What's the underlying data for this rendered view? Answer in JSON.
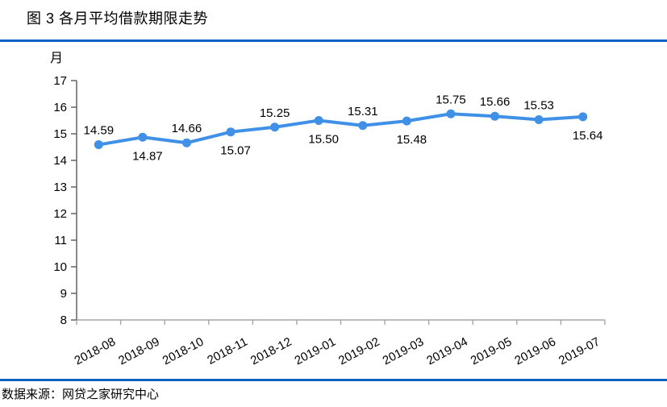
{
  "header": {
    "title": "图 3 各月平均借款期限走势"
  },
  "footer": {
    "source": "数据来源：网贷之家研究中心"
  },
  "colors": {
    "series_line": "#4090E8",
    "divider_blue": "#0E60C4",
    "y_axis": "#595959",
    "x_axis": "#A6A6A6",
    "label_text": "#000000"
  },
  "chart_data": {
    "type": "line",
    "title": "图 3 各月平均借款期限走势",
    "xlabel": "",
    "ylabel": "月",
    "ylim": [
      8,
      17
    ],
    "y_tick_step": 1,
    "grid": false,
    "legend": "none",
    "x": [
      "2018-08",
      "2018-09",
      "2018-10",
      "2018-11",
      "2018-12",
      "2019-01",
      "2019-02",
      "2019-03",
      "2019-04",
      "2019-05",
      "2019-06",
      "2019-07"
    ],
    "values": [
      14.59,
      14.87,
      14.66,
      15.07,
      15.25,
      15.5,
      15.31,
      15.48,
      15.75,
      15.66,
      15.53,
      15.64
    ],
    "data_label_side": [
      "above",
      "below",
      "above",
      "below",
      "above",
      "below",
      "above",
      "below",
      "above",
      "above",
      "above",
      "below"
    ],
    "data_label_format": "2dp"
  }
}
